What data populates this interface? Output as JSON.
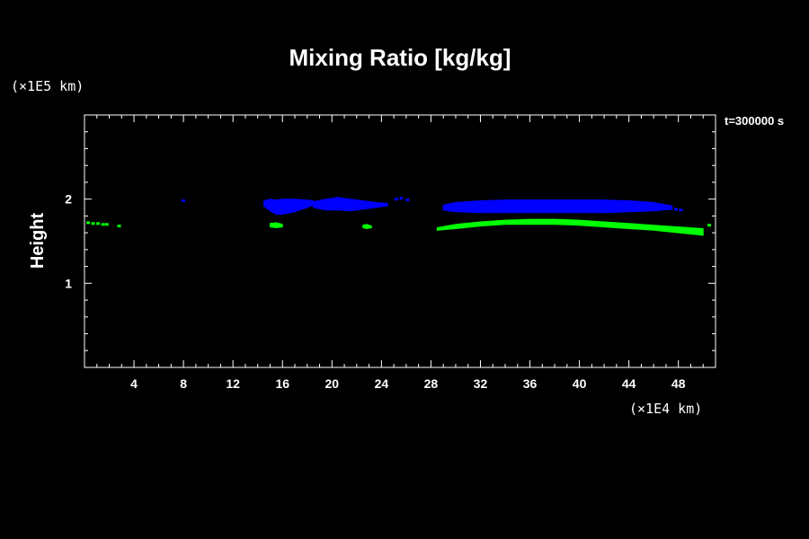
{
  "chart_data": {
    "type": "scatter",
    "title": "Mixing Ratio [kg/kg]",
    "ylabel": "Height",
    "x_unit_label": "(×1E4 km)",
    "y_unit_label": "(×1E5 km)",
    "time_label": "t=300000 s",
    "xlim": [
      0,
      51
    ],
    "ylim": [
      0,
      3
    ],
    "x_ticks": [
      4,
      8,
      12,
      16,
      20,
      24,
      28,
      32,
      36,
      40,
      44,
      48
    ],
    "y_ticks": [
      1,
      2
    ],
    "grid": false,
    "colors": {
      "background": "#000000",
      "axes": "#ffffff"
    },
    "series": [
      {
        "color": "#0000ff",
        "bands": [
          {
            "x": [
              14.5,
              15.0,
              15.5,
              16.0,
              17.0,
              18.0,
              18.5
            ],
            "top": [
              1.98,
              2.0,
              1.99,
              2.0,
              2.0,
              1.99,
              1.98
            ],
            "bottom": [
              1.92,
              1.86,
              1.82,
              1.82,
              1.85,
              1.9,
              1.93
            ]
          },
          {
            "x": [
              18.5,
              19.5,
              20.5,
              21.5,
              22.5,
              23.5,
              24.5
            ],
            "top": [
              1.97,
              2.0,
              2.02,
              2.0,
              1.98,
              1.96,
              1.95
            ],
            "bottom": [
              1.9,
              1.87,
              1.87,
              1.86,
              1.88,
              1.9,
              1.92
            ]
          },
          {
            "x": [
              29.0,
              30.0,
              32.0,
              34.0,
              36.0,
              38.0,
              40.0,
              42.0,
              44.0,
              46.0,
              47.5
            ],
            "top": [
              1.93,
              1.96,
              1.98,
              1.99,
              1.99,
              1.99,
              1.99,
              1.99,
              1.98,
              1.96,
              1.92
            ],
            "bottom": [
              1.87,
              1.85,
              1.84,
              1.84,
              1.84,
              1.84,
              1.84,
              1.84,
              1.85,
              1.86,
              1.88
            ]
          }
        ],
        "points": [
          [
            8.0,
            1.98
          ],
          [
            25.2,
            2.0
          ],
          [
            25.6,
            2.01
          ],
          [
            26.1,
            1.99
          ],
          [
            47.8,
            1.88
          ],
          [
            48.2,
            1.87
          ]
        ]
      },
      {
        "color": "#00ff00",
        "bands": [
          {
            "x": [
              28.5,
              30.0,
              32.0,
              34.0,
              36.0,
              38.0,
              40.0,
              42.0,
              44.0,
              46.0,
              48.0,
              50.0
            ],
            "top": [
              1.66,
              1.7,
              1.73,
              1.75,
              1.76,
              1.76,
              1.75,
              1.73,
              1.71,
              1.69,
              1.67,
              1.65
            ],
            "bottom": [
              1.63,
              1.65,
              1.68,
              1.7,
              1.7,
              1.7,
              1.69,
              1.67,
              1.65,
              1.63,
              1.6,
              1.57
            ]
          },
          {
            "x": [
              15.0,
              15.5,
              16.0
            ],
            "top": [
              1.71,
              1.72,
              1.7
            ],
            "bottom": [
              1.67,
              1.66,
              1.67
            ]
          },
          {
            "x": [
              22.5,
              22.8,
              23.2
            ],
            "top": [
              1.69,
              1.7,
              1.68
            ],
            "bottom": [
              1.66,
              1.65,
              1.66
            ]
          }
        ],
        "points": [
          [
            0.3,
            1.72
          ],
          [
            0.7,
            1.71
          ],
          [
            1.1,
            1.71
          ],
          [
            1.5,
            1.7
          ],
          [
            1.8,
            1.7
          ],
          [
            2.8,
            1.68
          ],
          [
            50.5,
            1.69
          ]
        ]
      }
    ]
  }
}
